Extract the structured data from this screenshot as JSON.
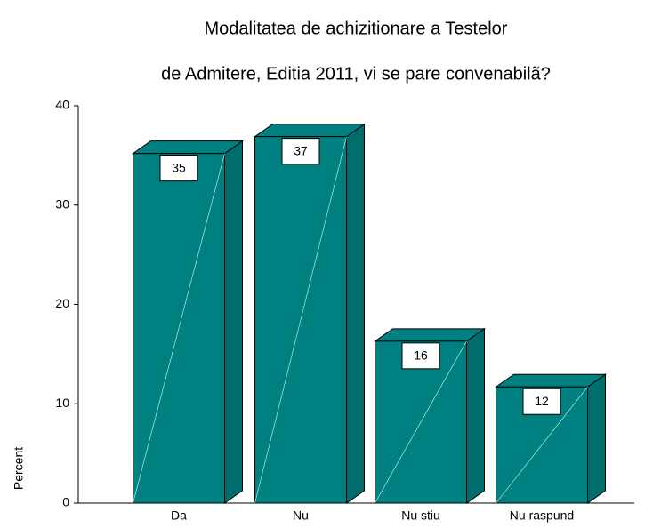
{
  "chart_data": {
    "type": "bar3d",
    "title": [
      "Modalitatea de achizitionare a Testelor",
      "de Admitere, Editia 2011, vi se pare convenabilã?"
    ],
    "y_label": "Percent",
    "categories": [
      "Da",
      "Nu",
      "Nu stiu",
      "Nu raspund"
    ],
    "values": [
      35.2,
      36.9,
      16.3,
      11.7
    ],
    "value_labels": [
      "35",
      "37",
      "16",
      "12"
    ],
    "color": "#008080",
    "ylim": [
      0,
      40
    ],
    "yticks": [
      0,
      10,
      20,
      30,
      40
    ]
  }
}
